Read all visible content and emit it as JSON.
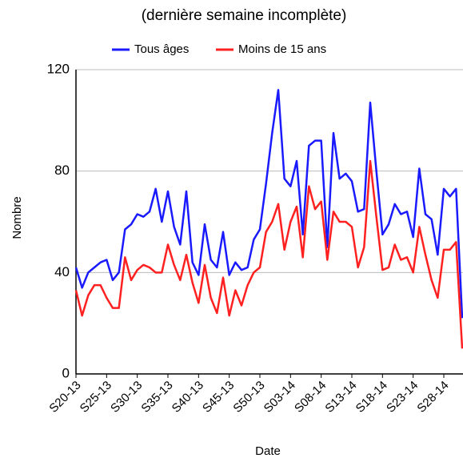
{
  "chart_data": {
    "type": "line",
    "subtitle": "(dernière semaine incomplète)",
    "xlabel": "Date",
    "ylabel": "Nombre",
    "categories": [
      "S20-13",
      null,
      null,
      null,
      null,
      "S25-13",
      null,
      null,
      null,
      null,
      "S30-13",
      null,
      null,
      null,
      null,
      "S35-13",
      null,
      null,
      null,
      null,
      "S40-13",
      null,
      null,
      null,
      null,
      "S45-13",
      null,
      null,
      null,
      null,
      "S50-13",
      null,
      null,
      null,
      null,
      "S03-14",
      null,
      null,
      null,
      null,
      "S08-14",
      null,
      null,
      null,
      null,
      "S13-14",
      null,
      null,
      null,
      null,
      "S18-14",
      null,
      null,
      null,
      null,
      "S23-14",
      null,
      null,
      null,
      null,
      "S28-14",
      null,
      null,
      null
    ],
    "series": [
      {
        "name": "Tous âges",
        "color": "#1a1aff",
        "values": [
          42,
          34,
          40,
          42,
          44,
          45,
          37,
          40,
          57,
          59,
          63,
          62,
          64,
          73,
          60,
          72,
          58,
          51,
          72,
          44,
          39,
          59,
          45,
          42,
          56,
          39,
          44,
          41,
          42,
          53,
          57,
          75,
          95,
          112,
          77,
          74,
          84,
          55,
          90,
          92,
          92,
          50,
          95,
          77,
          79,
          76,
          64,
          65,
          107,
          80,
          55,
          59,
          67,
          63,
          64,
          54,
          81,
          63,
          61,
          47,
          73,
          70,
          73,
          22
        ]
      },
      {
        "name": "Moins de 15 ans",
        "color": "#ff2020",
        "values": [
          33,
          23,
          31,
          35,
          35,
          30,
          26,
          26,
          46,
          37,
          41,
          43,
          42,
          40,
          40,
          51,
          43,
          37,
          47,
          36,
          28,
          43,
          30,
          24,
          38,
          23,
          33,
          27,
          35,
          40,
          42,
          56,
          60,
          67,
          49,
          60,
          66,
          46,
          74,
          65,
          68,
          45,
          64,
          60,
          60,
          58,
          42,
          50,
          84,
          62,
          41,
          42,
          51,
          45,
          46,
          40,
          58,
          47,
          37,
          30,
          49,
          49,
          52,
          10
        ]
      }
    ],
    "ylim": [
      0,
      120
    ],
    "yticks": [
      0,
      40,
      80,
      120
    ],
    "grid": true
  }
}
